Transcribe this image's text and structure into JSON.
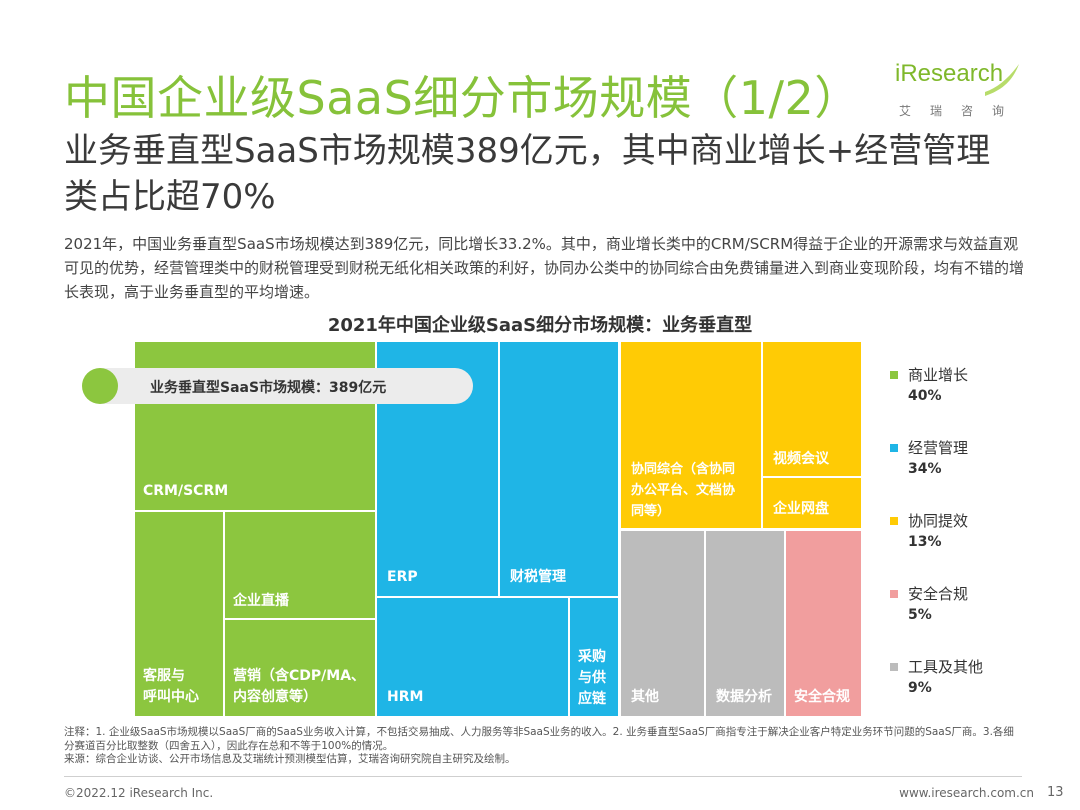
{
  "header": {
    "title": "中国企业级SaaS细分市场规模（1/2）",
    "subtitle": "业务垂直型SaaS市场规模389亿元，其中商业增长+经营管理类占比超70%",
    "paragraph": "2021年，中国业务垂直型SaaS市场规模达到389亿元，同比增长33.2%。其中，商业增长类中的CRM/SCRM得益于企业的开源需求与效益直观可见的优势，经营管理类中的财税管理受到财税无纸化相关政策的利好，协同办公类中的协同综合由免费铺量进入到商业变现阶段，均有不错的增长表现，高于业务垂直型的平均增速。"
  },
  "logo": {
    "main": "iResearch",
    "sub": "艾瑞咨询"
  },
  "chart_data": {
    "type": "treemap",
    "title": "2021年中国企业级SaaS细分市场规模：业务垂直型",
    "callout": "业务垂直型SaaS市场规模：389亿元",
    "groups": [
      {
        "name": "商业增长",
        "value": 40,
        "color": "#8cc63f",
        "children": [
          "CRM/SCRM",
          "企业直播",
          "客服与呼叫中心",
          "营销（含CDP/MA、内容创意等）"
        ]
      },
      {
        "name": "经营管理",
        "value": 34,
        "color": "#1fb5e6",
        "children": [
          "ERP",
          "财税管理",
          "HRM",
          "采购与供应链"
        ]
      },
      {
        "name": "协同提效",
        "value": 13,
        "color": "#ffcb05",
        "children": [
          "协同综合（含协同办公平台、文档协同等）",
          "视频会议",
          "企业网盘"
        ]
      },
      {
        "name": "安全合规",
        "value": 5,
        "color": "#f19e9e",
        "children": [
          "安全合规"
        ]
      },
      {
        "name": "工具及其他",
        "value": 9,
        "color": "#bcbcbc",
        "children": [
          "其他",
          "数据分析"
        ]
      }
    ],
    "legend_position": "right"
  },
  "labels": {
    "crm": "CRM/SCRM",
    "live": "企业直播",
    "service": "客服与\n呼叫中心",
    "marketing": "营销（含CDP/MA、\n内容创意等）",
    "erp": "ERP",
    "tax": "财税管理",
    "hrm": "HRM",
    "supply": "采购\n与供\n应链",
    "collab": "协同综合（含协同\n办公平台、文档协\n同等）",
    "video": "视频会议",
    "disk": "企业网盘",
    "other": "其他",
    "data": "数据分析",
    "security": "安全合规"
  },
  "legend": [
    {
      "name": "商业增长",
      "pct": "40%",
      "color": "#8cc63f"
    },
    {
      "name": "经营管理",
      "pct": "34%",
      "color": "#1fb5e6"
    },
    {
      "name": "协同提效",
      "pct": "13%",
      "color": "#ffcb05"
    },
    {
      "name": "安全合规",
      "pct": "5%",
      "color": "#f19e9e"
    },
    {
      "name": "工具及其他",
      "pct": "9%",
      "color": "#bcbcbc"
    }
  ],
  "notes": "注释：1. 企业级SaaS市场规模以SaaS厂商的SaaS业务收入计算，不包括交易抽成、人力服务等非SaaS业务的收入。2. 业务垂直型SaaS厂商指专注于解决企业客户特定业务环节问题的SaaS厂商。3.各细分赛道百分比取整数（四舍五入），因此存在总和不等于100%的情况。\n来源：综合企业访谈、公开市场信息及艾瑞统计预测模型估算，艾瑞咨询研究院自主研究及绘制。",
  "footer": {
    "copyright": "©2022.12 iResearch Inc.",
    "url": "www.iresearch.com.cn",
    "page": "13"
  }
}
